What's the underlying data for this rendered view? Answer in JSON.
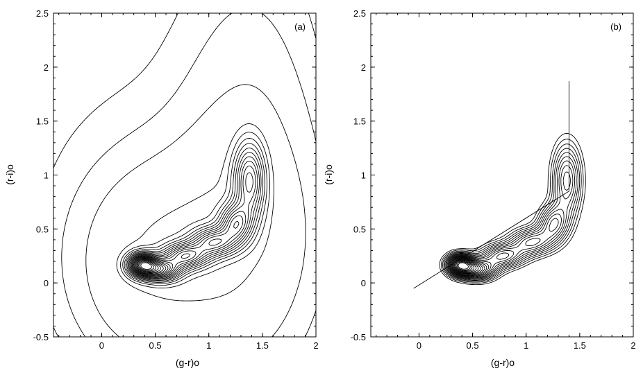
{
  "chart_data": [
    {
      "type": "contour",
      "panel_label": "(a)",
      "xlabel": "(g-r)o",
      "ylabel": "(r-i)o",
      "xlim": [
        -0.45,
        2.0
      ],
      "ylim": [
        -0.5,
        2.5
      ],
      "x_ticks": [
        "0",
        "0.5",
        "1",
        "1.5",
        "2"
      ],
      "y_ticks": [
        "-0.5",
        "0",
        "0.5",
        "1",
        "1.5",
        "2",
        "2.5"
      ],
      "x_tick_values": [
        0,
        0.5,
        1,
        1.5,
        2
      ],
      "y_tick_values": [
        -0.5,
        0,
        0.5,
        1,
        1.5,
        2,
        2.5
      ],
      "density_peaks": [
        {
          "x": 0.38,
          "y": 0.17,
          "strength": 1.0,
          "sx": 0.09,
          "sy": 0.07
        },
        {
          "x": 0.55,
          "y": 0.12,
          "strength": 0.75,
          "sx": 0.12,
          "sy": 0.07
        },
        {
          "x": 0.78,
          "y": 0.25,
          "strength": 0.6,
          "sx": 0.14,
          "sy": 0.08
        },
        {
          "x": 1.05,
          "y": 0.38,
          "strength": 0.55,
          "sx": 0.14,
          "sy": 0.09
        },
        {
          "x": 1.25,
          "y": 0.55,
          "strength": 0.5,
          "sx": 0.1,
          "sy": 0.12
        },
        {
          "x": 1.38,
          "y": 0.95,
          "strength": 0.55,
          "sx": 0.1,
          "sy": 0.25
        }
      ],
      "contour_levels": 22,
      "includes_outer_halo": true
    },
    {
      "type": "contour",
      "panel_label": "(b)",
      "xlabel": "(g-r)o",
      "ylabel": "(r-i)o",
      "xlim": [
        -0.45,
        2.0
      ],
      "ylim": [
        -0.5,
        2.5
      ],
      "x_ticks": [
        "0",
        "0.5",
        "1",
        "1.5",
        "2"
      ],
      "y_ticks": [
        "-0.5",
        "0",
        "0.5",
        "1",
        "1.5",
        "2",
        "2.5"
      ],
      "x_tick_values": [
        0,
        0.5,
        1,
        1.5,
        2
      ],
      "y_tick_values": [
        -0.5,
        0,
        0.5,
        1,
        1.5,
        2,
        2.5
      ],
      "density_peaks": [
        {
          "x": 0.38,
          "y": 0.17,
          "strength": 1.0,
          "sx": 0.09,
          "sy": 0.07
        },
        {
          "x": 0.55,
          "y": 0.12,
          "strength": 0.75,
          "sx": 0.12,
          "sy": 0.07
        },
        {
          "x": 0.78,
          "y": 0.25,
          "strength": 0.6,
          "sx": 0.14,
          "sy": 0.08
        },
        {
          "x": 1.05,
          "y": 0.38,
          "strength": 0.55,
          "sx": 0.14,
          "sy": 0.09
        },
        {
          "x": 1.25,
          "y": 0.55,
          "strength": 0.5,
          "sx": 0.1,
          "sy": 0.12
        },
        {
          "x": 1.38,
          "y": 0.95,
          "strength": 0.55,
          "sx": 0.1,
          "sy": 0.25
        }
      ],
      "contour_levels": 22,
      "includes_outer_halo": false,
      "reference_lines": [
        {
          "from": [
            -0.05,
            -0.05
          ],
          "to": [
            1.4,
            0.85
          ]
        },
        {
          "from": [
            1.4,
            0.85
          ],
          "to": [
            1.4,
            1.87
          ]
        }
      ]
    }
  ]
}
